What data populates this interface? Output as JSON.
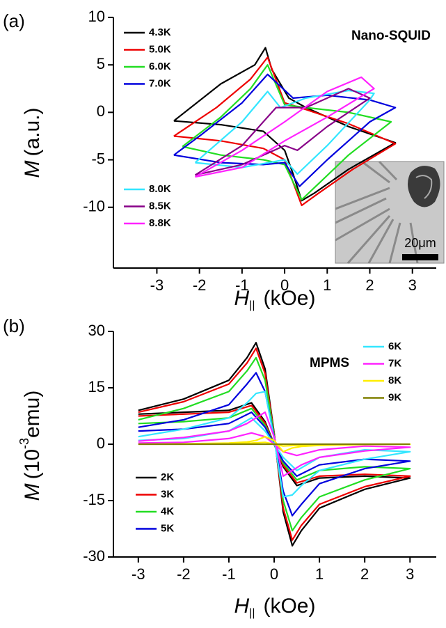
{
  "chart_data": [
    {
      "type": "line",
      "panel_label": "(a)",
      "annotation": "Nano-SQUID",
      "y_label": "M",
      "y_label_unit": "(a.u.)",
      "x_label": "H",
      "x_label_sub": "||",
      "x_label_unit": "(kOe)",
      "inset_scale_label": "20μm",
      "xlim": [
        -4.02,
        3.56
      ],
      "ylim": [
        -16.4,
        10
      ],
      "xticks": [
        -3,
        -2,
        -1,
        0,
        1,
        2,
        3
      ],
      "yticks": [
        -10,
        -5,
        0,
        5,
        10
      ],
      "series": [
        {
          "name": "4.3K",
          "color": "#000000",
          "x": [
            -2.6,
            -1.5,
            -0.5,
            0,
            0.2,
            0.4,
            0.7,
            1.5,
            2.6,
            1.5,
            0.5,
            0.1,
            -0.3,
            -0.45,
            -0.7,
            -1.5,
            -2.6
          ],
          "values": [
            -0.9,
            -1.3,
            -2,
            -4,
            -6.5,
            -9.3,
            -8.5,
            -6,
            -3.2,
            -1.5,
            0.5,
            1.5,
            4.5,
            6.8,
            5,
            3,
            -0.9
          ]
        },
        {
          "name": "5.0K",
          "color": "#ee0000",
          "x": [
            -2.6,
            -1.5,
            -0.5,
            0,
            0.4,
            0.8,
            1.6,
            2.6,
            1.5,
            0.5,
            0,
            -0.4,
            -0.8,
            -1.6,
            -2.6
          ],
          "values": [
            -2.5,
            -3,
            -3.8,
            -5,
            -9.8,
            -8.5,
            -6,
            -3.3,
            -1.2,
            0.3,
            1,
            5.8,
            3.5,
            0.5,
            -2.5
          ]
        },
        {
          "name": "6.0K",
          "color": "#22dd22",
          "x": [
            -2.4,
            -1.5,
            -0.5,
            0,
            0.4,
            0.8,
            1.5,
            2.5,
            1.5,
            0.5,
            0,
            -0.4,
            -0.8,
            -1.5,
            -2.4
          ],
          "values": [
            -3.6,
            -4.5,
            -5,
            -5.5,
            -9.2,
            -7.5,
            -4.5,
            -1,
            0,
            0.5,
            0.8,
            5,
            2.5,
            -0.5,
            -3.6
          ]
        },
        {
          "name": "7.0K",
          "color": "#0000dd",
          "x": [
            -2.6,
            -1.5,
            -0.5,
            0,
            0.35,
            1,
            2,
            2.6,
            2,
            1,
            0.2,
            -0.4,
            -1,
            -2,
            -2.6
          ],
          "values": [
            -4.5,
            -5.3,
            -5.5,
            -5.3,
            -7.8,
            -5,
            -1,
            0.5,
            1.3,
            1.8,
            1.5,
            4,
            1,
            -2.5,
            -4.5
          ]
        },
        {
          "name": "8.0K",
          "color": "#33e6ff",
          "x": [
            -2.1,
            -1,
            0,
            0.3,
            1,
            2,
            2.1,
            1.5,
            0.5,
            -0.1,
            -0.4,
            -1,
            -2.1
          ],
          "values": [
            -5.3,
            -5.8,
            -5,
            -6.5,
            -3.5,
            1.3,
            2,
            2.3,
            1.5,
            0.5,
            2.2,
            -1,
            -5.3
          ]
        },
        {
          "name": "8.5K",
          "color": "#880088",
          "x": [
            -2.1,
            -1,
            0,
            0.3,
            1,
            2,
            1.5,
            0.5,
            -0.2,
            -1,
            -2.1
          ],
          "values": [
            -6.6,
            -5.5,
            -3.5,
            -4,
            -1.5,
            1.5,
            2.5,
            0.5,
            0.5,
            -3.5,
            -6.6
          ]
        },
        {
          "name": "8.8K",
          "color": "#ff22ff",
          "x": [
            -2.1,
            -1,
            0,
            1,
            2.1,
            1.8,
            1,
            0,
            -1,
            -2.1
          ],
          "values": [
            -6.8,
            -5.8,
            -3,
            -0.5,
            2.5,
            3.7,
            2.2,
            -1,
            -4,
            -6.8
          ]
        }
      ]
    },
    {
      "type": "line",
      "panel_label": "(b)",
      "annotation": "MPMS",
      "y_label": "M",
      "y_label_unit": "(10",
      "y_label_exp": "-3",
      "y_label_unit_end": "emu)",
      "x_label": "H",
      "x_label_sub": "||",
      "x_label_unit": "(kOe)",
      "xlim": [
        -3.55,
        3.58
      ],
      "ylim": [
        -30,
        30
      ],
      "xticks": [
        -3,
        -2,
        -1,
        0,
        1,
        2,
        3
      ],
      "yticks": [
        -30,
        -15,
        0,
        15,
        30
      ],
      "series": [
        {
          "name": "2K",
          "color": "#000000",
          "x": [
            -3,
            -2,
            -1,
            -0.6,
            -0.4,
            -0.2,
            0,
            0.2,
            0.4,
            0.6,
            1,
            2,
            3,
            2,
            1,
            0.5,
            0.2,
            0,
            -0.2,
            -0.5,
            -1,
            -2,
            -3
          ],
          "values": [
            9,
            12,
            17,
            23,
            27,
            20,
            3,
            -18,
            -27,
            -23,
            -17,
            -12,
            -9,
            -8.5,
            -9,
            -11,
            -6,
            0,
            6,
            11,
            9,
            8.5,
            8
          ]
        },
        {
          "name": "3K",
          "color": "#ee0000",
          "x": [
            -3,
            -2,
            -1,
            -0.6,
            -0.4,
            -0.2,
            0,
            0.2,
            0.4,
            0.6,
            1,
            2,
            3,
            2,
            1,
            0.5,
            0.2,
            0,
            -0.2,
            -0.5,
            -1,
            -2,
            -3
          ],
          "values": [
            8.5,
            11.3,
            16,
            21.6,
            25.5,
            18.8,
            2.8,
            -17,
            -25.5,
            -21.6,
            -16,
            -11.3,
            -8.5,
            -8,
            -8.5,
            -10.3,
            -5.6,
            0,
            5.6,
            10.3,
            8.5,
            8,
            7.5
          ]
        },
        {
          "name": "4K",
          "color": "#22dd22",
          "x": [
            -3,
            -2,
            -1,
            -0.6,
            -0.4,
            -0.2,
            0,
            0.2,
            0.4,
            0.6,
            1,
            2,
            3,
            2,
            1,
            0.5,
            0.2,
            0,
            -0.2,
            -0.5,
            -1,
            -2,
            -3
          ],
          "values": [
            6.5,
            9.5,
            14,
            19.5,
            23,
            17,
            2.5,
            -15,
            -23,
            -19.5,
            -14,
            -9.5,
            -6.5,
            -6,
            -7,
            -9.5,
            -5,
            0,
            5,
            9.5,
            7,
            6,
            5.5
          ]
        },
        {
          "name": "5K",
          "color": "#0000dd",
          "x": [
            -3,
            -2,
            -1,
            -0.6,
            -0.4,
            -0.2,
            0,
            0.2,
            0.4,
            0.6,
            1,
            2,
            3,
            2,
            1,
            0.5,
            0.2,
            0,
            -0.2,
            -0.5,
            -1,
            -2,
            -3
          ],
          "values": [
            4.5,
            6.5,
            10.5,
            16,
            19,
            14,
            2,
            -12.5,
            -19,
            -16,
            -10.5,
            -6.5,
            -4.5,
            -4,
            -5.5,
            -8.5,
            -4.5,
            0,
            4.5,
            8.5,
            5.5,
            4,
            3.5
          ]
        },
        {
          "name": "6K",
          "color": "#33e6ff",
          "x": [
            -3,
            -2,
            -1,
            -0.6,
            -0.4,
            -0.2,
            0,
            0.2,
            0.4,
            0.6,
            1,
            2,
            3,
            2,
            1,
            0.5,
            0.2,
            0,
            -0.2,
            -0.5,
            -1,
            -2,
            -3
          ],
          "values": [
            2,
            4,
            7,
            11,
            13.5,
            14,
            1.5,
            -14,
            -13.5,
            -11,
            -7,
            -4,
            -2,
            -1.5,
            -3.5,
            -7,
            -3.5,
            0,
            3.5,
            7,
            3.5,
            1.5,
            1
          ]
        },
        {
          "name": "7K",
          "color": "#ff22ff",
          "x": [
            -3,
            -2,
            -1,
            -0.6,
            -0.4,
            -0.2,
            0,
            0.2,
            0.4,
            0.6,
            1,
            2,
            3,
            2,
            1,
            0.5,
            0.2,
            0,
            -0.2,
            -0.5,
            -1,
            -2,
            -3
          ],
          "values": [
            0.8,
            1.8,
            3.5,
            5.5,
            7,
            8.5,
            2,
            -8.5,
            -7,
            -5.5,
            -3.5,
            -1.8,
            -0.8,
            -0.5,
            -1.5,
            -3,
            -2,
            0,
            2,
            3,
            1.5,
            0.5,
            0.3
          ]
        },
        {
          "name": "8K",
          "color": "#ffee00",
          "x": [
            -3,
            -2,
            -1,
            -0.6,
            -0.4,
            -0.2,
            0,
            0.2,
            0.4,
            0.6,
            1,
            2,
            3,
            2,
            1,
            0.5,
            0.2,
            0,
            -0.2,
            -0.5,
            -1,
            -2,
            -3
          ],
          "values": [
            0,
            0.1,
            0.3,
            0.6,
            1,
            2,
            1,
            -2,
            -1,
            -0.6,
            -0.3,
            -0.1,
            0,
            0,
            -0.1,
            -0.3,
            -0.5,
            0,
            0.5,
            0.3,
            0.1,
            0,
            0
          ]
        },
        {
          "name": "9K",
          "color": "#808000",
          "x": [
            -3,
            3
          ],
          "values": [
            0,
            0
          ]
        }
      ]
    }
  ]
}
